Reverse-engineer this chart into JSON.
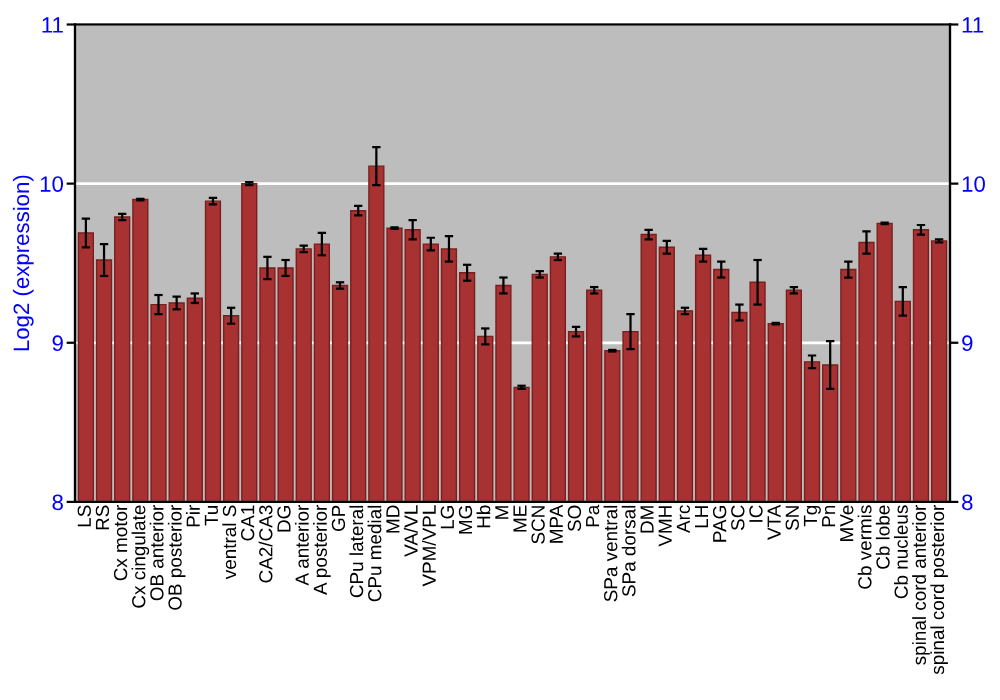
{
  "chart_data": {
    "type": "bar",
    "ylabel": "Log2 (expression)",
    "categories": [
      "LS",
      "RS",
      "Cx motor",
      "Cx cingulate",
      "OB anterior",
      "OB posterior",
      "Pir",
      "Tu",
      "ventral S",
      "CA1",
      "CA2/CA3",
      "DG",
      "A anterior",
      "A posterior",
      "GP",
      "CPu lateral",
      "CPu medial",
      "MD",
      "VA/VL",
      "VPM/VPL",
      "LG",
      "MG",
      "Hb",
      "M",
      "ME",
      "SCN",
      "MPA",
      "SO",
      "Pa",
      "SPa ventral",
      "SPa dorsal",
      "DM",
      "VMH",
      "Arc",
      "LH",
      "PAG",
      "SC",
      "IC",
      "VTA",
      "SN",
      "Tg",
      "Pn",
      "MVe",
      "Cb vermis",
      "Cb lobe",
      "Cb nucleus",
      "spinal cord anterior",
      "spinal cord posterior"
    ],
    "values": [
      9.69,
      9.52,
      9.79,
      9.9,
      9.24,
      9.25,
      9.28,
      9.89,
      9.17,
      10.0,
      9.47,
      9.47,
      9.59,
      9.62,
      9.36,
      9.83,
      10.11,
      9.72,
      9.71,
      9.62,
      9.59,
      9.44,
      9.04,
      9.36,
      8.72,
      9.43,
      9.54,
      9.07,
      9.33,
      8.95,
      9.07,
      9.68,
      9.6,
      9.2,
      9.55,
      9.46,
      9.19,
      9.38,
      9.12,
      9.33,
      8.88,
      8.86,
      9.46,
      9.63,
      9.75,
      9.26,
      9.71,
      9.64
    ],
    "errors": [
      0.09,
      0.1,
      0.02,
      0.005,
      0.06,
      0.04,
      0.03,
      0.02,
      0.05,
      0.01,
      0.07,
      0.05,
      0.02,
      0.07,
      0.02,
      0.03,
      0.12,
      0.005,
      0.06,
      0.04,
      0.08,
      0.05,
      0.05,
      0.05,
      0.01,
      0.02,
      0.02,
      0.03,
      0.02,
      0.005,
      0.11,
      0.03,
      0.04,
      0.02,
      0.04,
      0.05,
      0.05,
      0.14,
      0.005,
      0.02,
      0.04,
      0.15,
      0.05,
      0.07,
      0.005,
      0.09,
      0.03,
      0.01
    ],
    "color": "#a83232",
    "ylim": [
      8,
      11
    ],
    "yticks": [
      8,
      9,
      10,
      11
    ],
    "y2lim": [
      8,
      11
    ],
    "y2ticks": [
      8,
      9,
      10,
      11
    ],
    "grid": "y"
  }
}
